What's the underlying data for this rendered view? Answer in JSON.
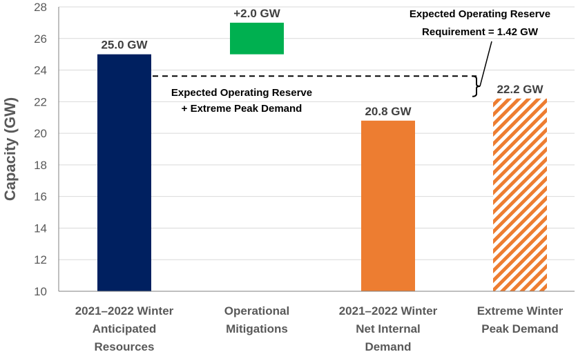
{
  "chart_data": {
    "type": "bar",
    "categories": [
      [
        "2021–2022 Winter",
        "Anticipated",
        "Resources"
      ],
      [
        "Operational",
        "Mitigations"
      ],
      [
        "2021–2022 Winter",
        "Net Internal",
        "Demand"
      ],
      [
        "Extreme Winter",
        "Peak Demand"
      ]
    ],
    "bars": [
      {
        "category": 0,
        "base": 10,
        "value": 25.0,
        "label": "25.0 GW",
        "color": "#002060",
        "fill": "solid"
      },
      {
        "category": 1,
        "base": 25.0,
        "value": 27.0,
        "label": "+2.0 GW",
        "color": "#00B050",
        "fill": "solid"
      },
      {
        "category": 2,
        "base": 10,
        "value": 20.8,
        "label": "20.8 GW",
        "color": "#ED7D31",
        "fill": "solid"
      },
      {
        "category": 3,
        "base": 10,
        "value": 22.2,
        "label": "22.2 GW",
        "color": "#ED7D31",
        "fill": "hatched"
      }
    ],
    "reserve_line_value": 23.62,
    "ylabel": "Capacity (GW)",
    "xlabel": "",
    "ylim": [
      10,
      28
    ],
    "yticks": [
      10,
      12,
      14,
      16,
      18,
      20,
      22,
      24,
      26,
      28
    ],
    "grid": true,
    "annotations": {
      "reserve_plus_peak": [
        "Expected Operating Reserve",
        "+ Extreme Peak Demand"
      ],
      "reserve_requirement": [
        "Expected Operating Reserve",
        "Requirement = 1.42 GW"
      ]
    }
  }
}
